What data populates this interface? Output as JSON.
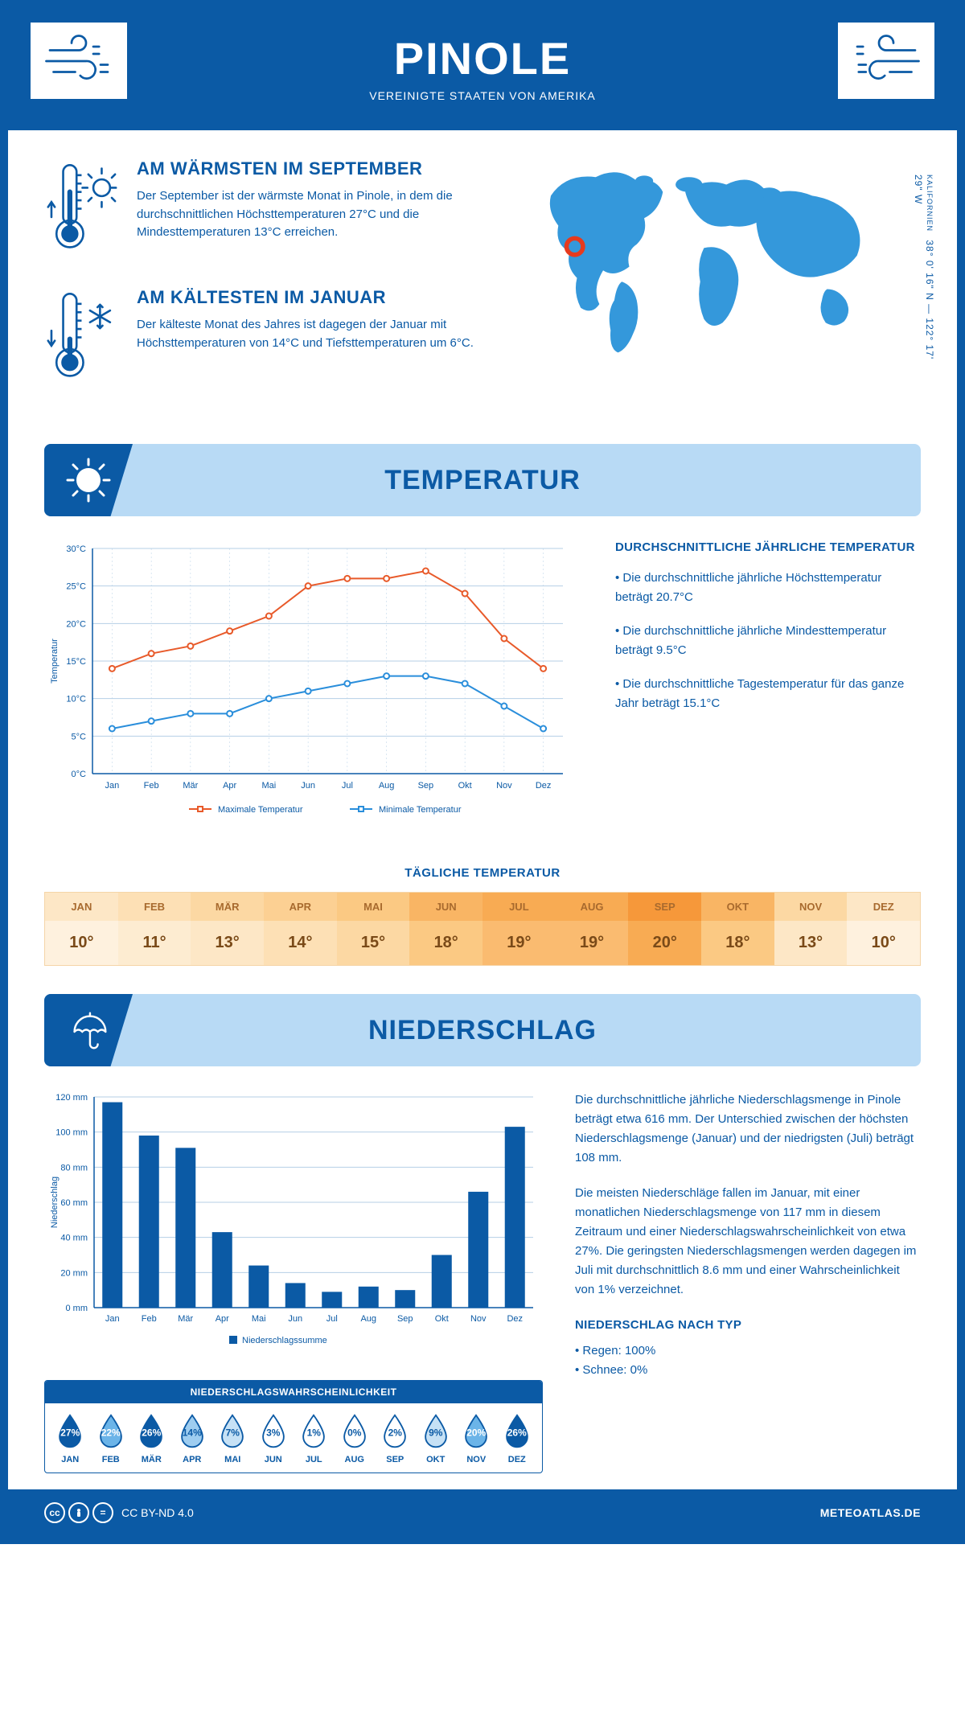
{
  "header": {
    "title": "PINOLE",
    "subtitle": "VEREINIGTE STAATEN VON AMERIKA"
  },
  "coords": {
    "text": "38° 0' 16\" N — 122° 17' 29\" W",
    "region": "KALIFORNIEN"
  },
  "facts": {
    "warm": {
      "title": "AM WÄRMSTEN IM SEPTEMBER",
      "body": "Der September ist der wärmste Monat in Pinole, in dem die durchschnittlichen Höchsttemperaturen 27°C und die Mindesttemperaturen 13°C erreichen."
    },
    "cold": {
      "title": "AM KÄLTESTEN IM JANUAR",
      "body": "Der kälteste Monat des Jahres ist dagegen der Januar mit Höchsttemperaturen von 14°C und Tiefsttemperaturen um 6°C."
    }
  },
  "sections": {
    "temp_title": "TEMPERATUR",
    "precip_title": "NIEDERSCHLAG"
  },
  "temp_chart": {
    "type": "line",
    "months": [
      "Jan",
      "Feb",
      "Mär",
      "Apr",
      "Mai",
      "Jun",
      "Jul",
      "Aug",
      "Sep",
      "Okt",
      "Nov",
      "Dez"
    ],
    "max_series": {
      "label": "Maximale Temperatur",
      "color": "#e85a2a",
      "values": [
        14,
        16,
        17,
        19,
        21,
        25,
        26,
        26,
        27,
        24,
        18,
        14
      ]
    },
    "min_series": {
      "label": "Minimale Temperatur",
      "color": "#2a8edb",
      "values": [
        6,
        7,
        8,
        8,
        10,
        11,
        12,
        13,
        13,
        12,
        9,
        6
      ]
    },
    "ylabel": "Temperatur",
    "ylim": [
      0,
      30
    ],
    "ytick_step": 5,
    "grid_color": "#b5cfe6",
    "axis_color": "#0b5aa5",
    "tick_suffix": "°C",
    "line_width": 2,
    "marker_radius": 3.5
  },
  "temp_info": {
    "heading": "DURCHSCHNITTLICHE JÄHRLICHE TEMPERATUR",
    "bullets": [
      "• Die durchschnittliche jährliche Höchsttemperatur beträgt 20.7°C",
      "• Die durchschnittliche jährliche Mindesttemperatur beträgt 9.5°C",
      "• Die durchschnittliche Tagestemperatur für das ganze Jahr beträgt 15.1°C"
    ]
  },
  "daily": {
    "title": "TÄGLICHE TEMPERATUR",
    "months": [
      "JAN",
      "FEB",
      "MÄR",
      "APR",
      "MAI",
      "JUN",
      "JUL",
      "AUG",
      "SEP",
      "OKT",
      "NOV",
      "DEZ"
    ],
    "values": [
      10,
      11,
      13,
      14,
      15,
      18,
      19,
      19,
      20,
      18,
      13,
      10
    ],
    "head_colors": [
      "#fde7c6",
      "#fde0b5",
      "#fcd8a3",
      "#fcd093",
      "#fbc983",
      "#f9b564",
      "#f8ab53",
      "#f8ab53",
      "#f6983a",
      "#f9b564",
      "#fcd8a3",
      "#fde7c6"
    ],
    "val_colors": [
      "#fef1de",
      "#fdecd1",
      "#fde7c6",
      "#fde0b5",
      "#fcd8a3",
      "#fbc983",
      "#fabb70",
      "#fabb70",
      "#f8ab53",
      "#fbc983",
      "#fde7c6",
      "#fef1de"
    ]
  },
  "precip_chart": {
    "type": "bar",
    "months": [
      "Jan",
      "Feb",
      "Mär",
      "Apr",
      "Mai",
      "Jun",
      "Jul",
      "Aug",
      "Sep",
      "Okt",
      "Nov",
      "Dez"
    ],
    "values": [
      117,
      98,
      91,
      43,
      24,
      14,
      9,
      12,
      10,
      30,
      66,
      103
    ],
    "bar_color": "#0b5aa5",
    "ylabel": "Niederschlag",
    "ylim": [
      0,
      120
    ],
    "ytick_step": 20,
    "tick_suffix": " mm",
    "grid_color": "#b5cfe6",
    "axis_color": "#0b5aa5",
    "legend": "Niederschlagssumme",
    "bar_width_ratio": 0.55
  },
  "precip_info": {
    "p1": "Die durchschnittliche jährliche Niederschlagsmenge in Pinole beträgt etwa 616 mm. Der Unterschied zwischen der höchsten Niederschlagsmenge (Januar) und der niedrigsten (Juli) beträgt 108 mm.",
    "p2": "Die meisten Niederschläge fallen im Januar, mit einer monatlichen Niederschlagsmenge von 117 mm in diesem Zeitraum und einer Niederschlagswahrscheinlichkeit von etwa 27%. Die geringsten Niederschlagsmengen werden dagegen im Juli mit durchschnittlich 8.6 mm und einer Wahrscheinlichkeit von 1% verzeichnet.",
    "type_heading": "NIEDERSCHLAG NACH TYP",
    "type_lines": [
      "• Regen: 100%",
      "• Schnee: 0%"
    ]
  },
  "prob": {
    "title": "NIEDERSCHLAGSWAHRSCHEINLICHKEIT",
    "months": [
      "JAN",
      "FEB",
      "MÄR",
      "APR",
      "MAI",
      "JUN",
      "JUL",
      "AUG",
      "SEP",
      "OKT",
      "NOV",
      "DEZ"
    ],
    "values": [
      27,
      22,
      26,
      14,
      7,
      3,
      1,
      0,
      2,
      9,
      20,
      26
    ],
    "fill_colors": [
      "#0b5aa5",
      "#6bb4e8",
      "#0b5aa5",
      "#9ecdf0",
      "#c6e1f5",
      "#ffffff",
      "#ffffff",
      "#ffffff",
      "#ffffff",
      "#c6e1f5",
      "#6bb4e8",
      "#0b5aa5"
    ],
    "text_colors": [
      "#ffffff",
      "#ffffff",
      "#ffffff",
      "#0b5aa5",
      "#0b5aa5",
      "#0b5aa5",
      "#0b5aa5",
      "#0b5aa5",
      "#0b5aa5",
      "#0b5aa5",
      "#ffffff",
      "#ffffff"
    ],
    "outline": "#0b5aa5"
  },
  "footer": {
    "license": "CC BY-ND 4.0",
    "site": "METEOATLAS.DE"
  },
  "colors": {
    "brand": "#0b5aa5",
    "banner_bg": "#b8daf5",
    "map_marker": "#e63a1e"
  }
}
